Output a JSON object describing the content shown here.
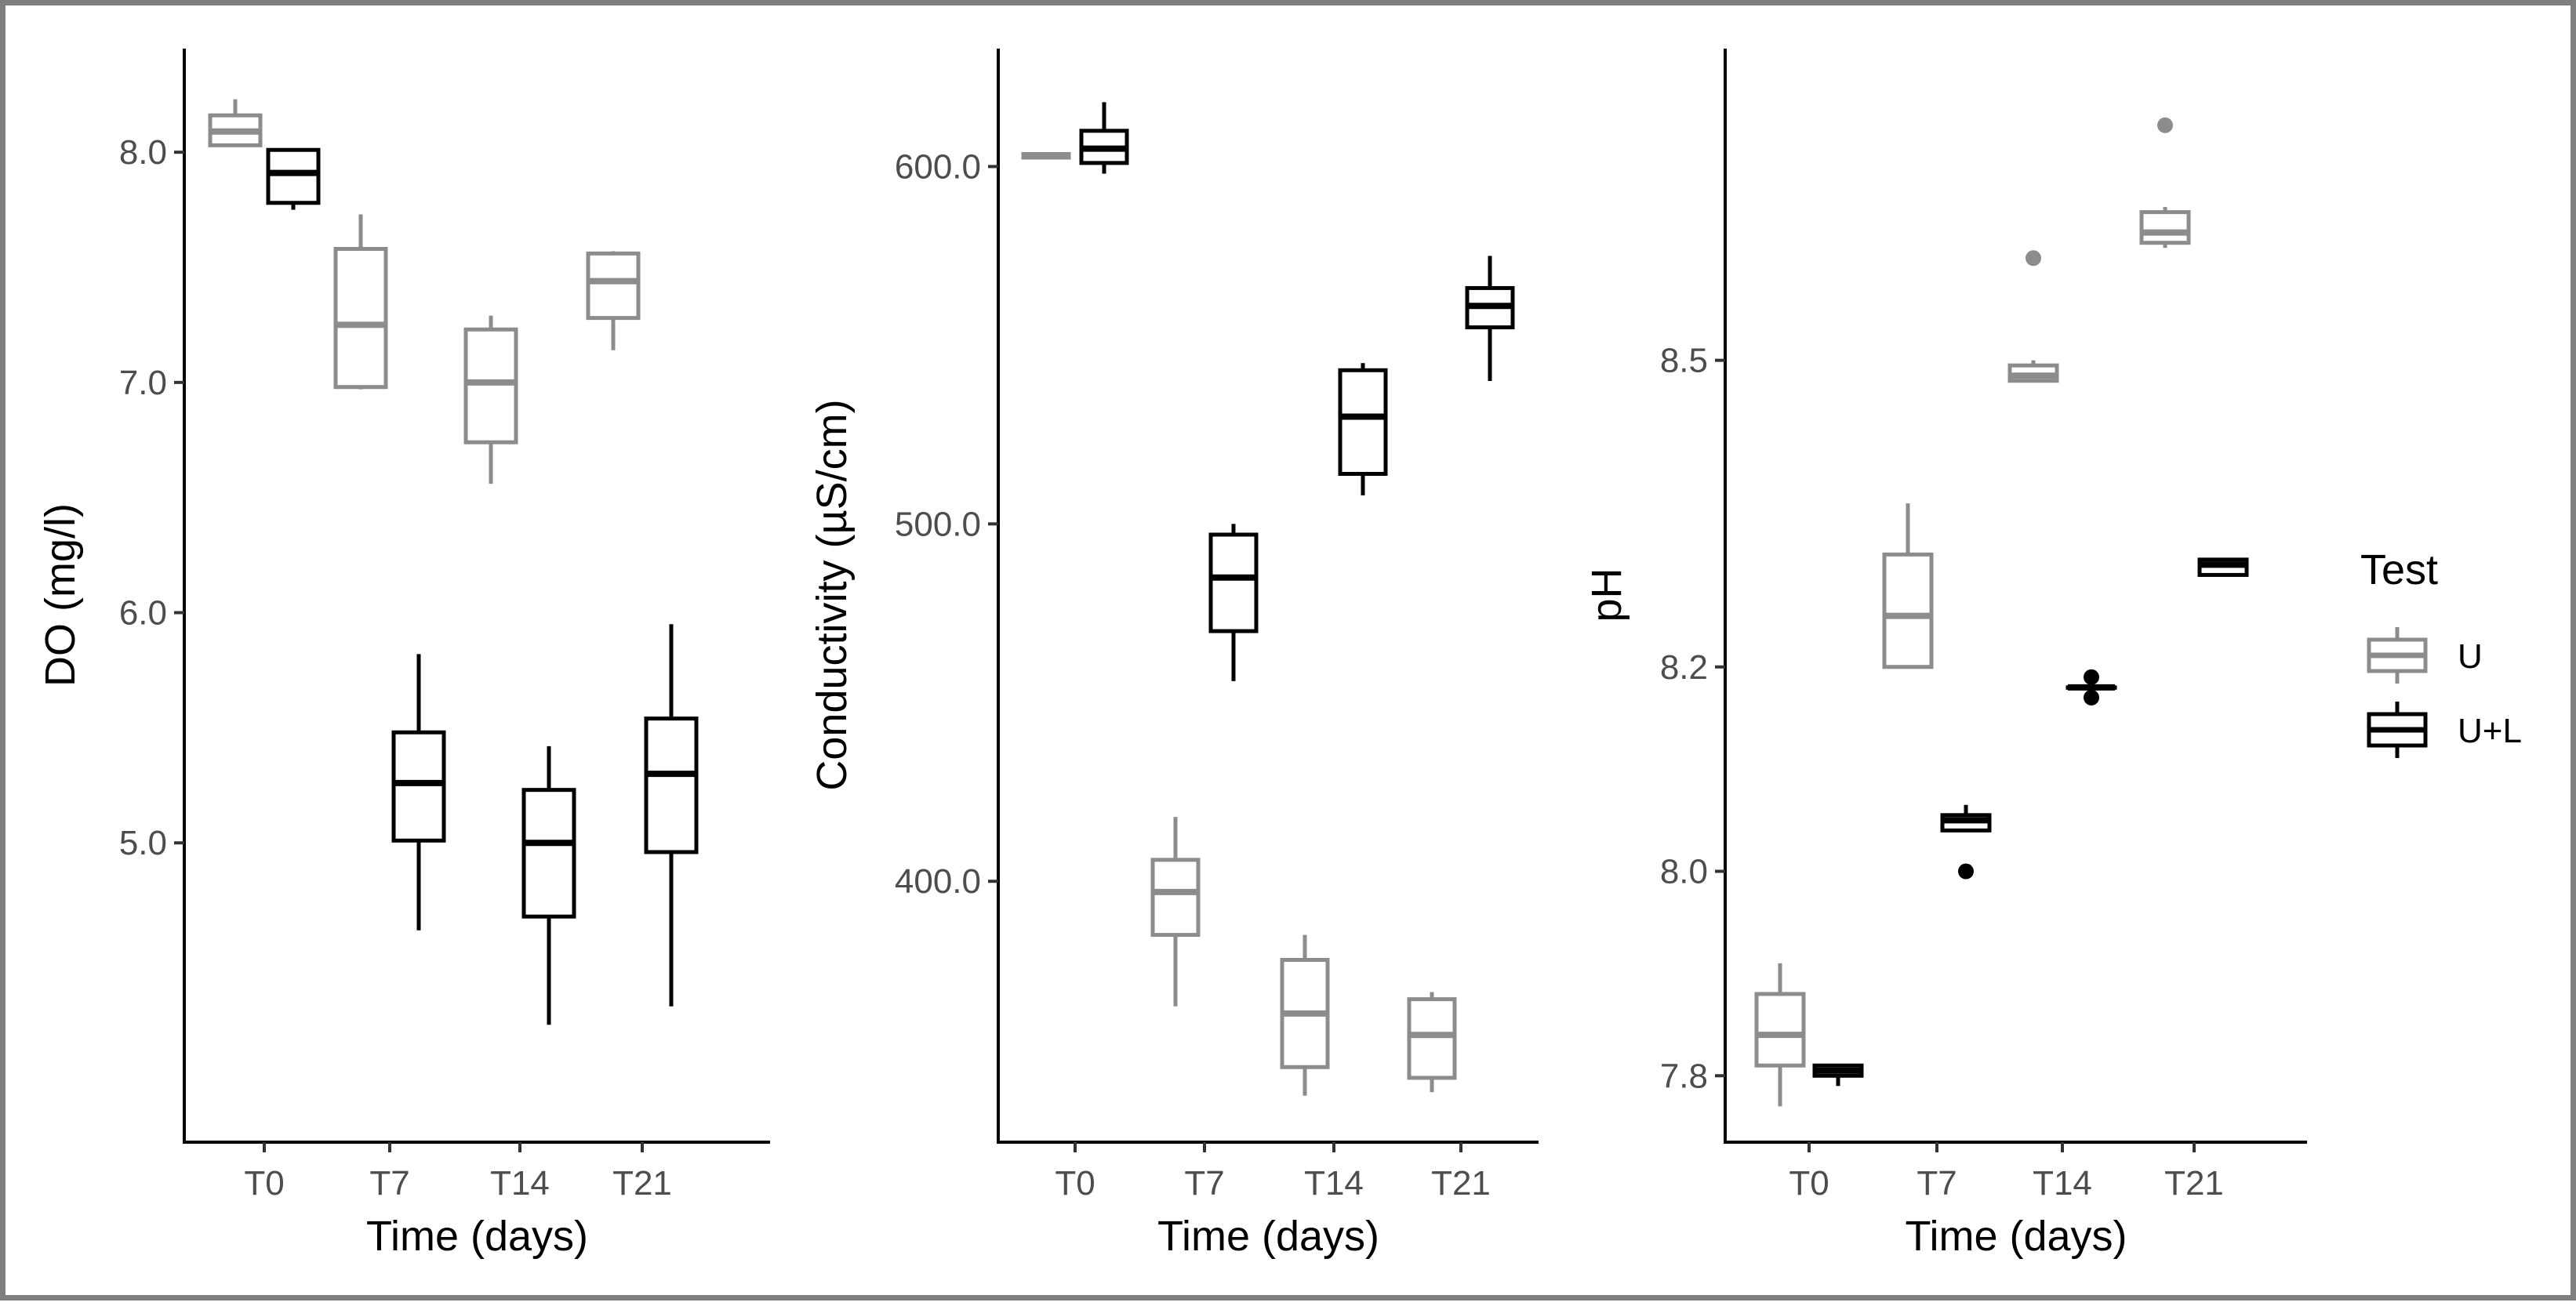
{
  "legend": {
    "title": "Test",
    "items": [
      {
        "label": "U",
        "color": "#8c8c8c"
      },
      {
        "label": "U+L",
        "color": "#000000"
      }
    ]
  },
  "chart_data": [
    {
      "type": "boxplot",
      "id": "do",
      "xlabel": "Time (days)",
      "ylabel": "DO (mg/l)",
      "categories": [
        "T0",
        "T7",
        "T14",
        "T21"
      ],
      "ylim": [
        3.7,
        8.45
      ],
      "yticks": [
        5.0,
        6.0,
        7.0,
        8.0
      ],
      "ytick_labels": [
        "5.0",
        "6.0",
        "7.0",
        "8.0"
      ],
      "series": [
        {
          "name": "U",
          "color": "#8c8c8c",
          "boxes": [
            {
              "min": 8.03,
              "q1": 8.03,
              "median": 8.09,
              "q3": 8.16,
              "max": 8.23,
              "outliers": []
            },
            {
              "min": 6.97,
              "q1": 6.98,
              "median": 7.25,
              "q3": 7.58,
              "max": 7.73,
              "outliers": []
            },
            {
              "min": 6.56,
              "q1": 6.74,
              "median": 7.0,
              "q3": 7.23,
              "max": 7.29,
              "outliers": []
            },
            {
              "min": 7.14,
              "q1": 7.28,
              "median": 7.44,
              "q3": 7.56,
              "max": 7.57,
              "outliers": []
            }
          ]
        },
        {
          "name": "U+L",
          "color": "#000000",
          "boxes": [
            {
              "min": 7.75,
              "q1": 7.78,
              "median": 7.91,
              "q3": 8.01,
              "max": 8.01,
              "outliers": []
            },
            {
              "min": 4.62,
              "q1": 5.01,
              "median": 5.26,
              "q3": 5.48,
              "max": 5.82,
              "outliers": []
            },
            {
              "min": 4.21,
              "q1": 4.68,
              "median": 5.0,
              "q3": 5.23,
              "max": 5.42,
              "outliers": []
            },
            {
              "min": 4.29,
              "q1": 4.96,
              "median": 5.3,
              "q3": 5.54,
              "max": 5.95,
              "outliers": []
            }
          ]
        }
      ]
    },
    {
      "type": "boxplot",
      "id": "conductivity",
      "xlabel": "Time (days)",
      "ylabel": "Conductivity (µS/cm)",
      "categories": [
        "T0",
        "T7",
        "T14",
        "T21"
      ],
      "ylim": [
        327,
        633
      ],
      "yticks": [
        400.0,
        500.0,
        600.0
      ],
      "ytick_labels": [
        "400.0",
        "500.0",
        "600.0"
      ],
      "series": [
        {
          "name": "U",
          "color": "#8c8c8c",
          "boxes": [
            {
              "min": 602,
              "q1": 602.5,
              "median": 603,
              "q3": 603.5,
              "max": 604,
              "outliers": []
            },
            {
              "min": 365,
              "q1": 385,
              "median": 397,
              "q3": 406,
              "max": 418,
              "outliers": []
            },
            {
              "min": 340,
              "q1": 348,
              "median": 363,
              "q3": 378,
              "max": 385,
              "outliers": []
            },
            {
              "min": 341,
              "q1": 345,
              "median": 357,
              "q3": 367,
              "max": 369,
              "outliers": []
            }
          ]
        },
        {
          "name": "U+L",
          "color": "#000000",
          "boxes": [
            {
              "min": 598,
              "q1": 601,
              "median": 605,
              "q3": 610,
              "max": 618,
              "outliers": []
            },
            {
              "min": 456,
              "q1": 470,
              "median": 485,
              "q3": 497,
              "max": 500,
              "outliers": []
            },
            {
              "min": 508,
              "q1": 514,
              "median": 530,
              "q3": 543,
              "max": 545,
              "outliers": []
            },
            {
              "min": 540,
              "q1": 555,
              "median": 561,
              "q3": 566,
              "max": 575,
              "outliers": []
            }
          ]
        }
      ]
    },
    {
      "type": "boxplot",
      "id": "ph",
      "xlabel": "Time (days)",
      "ylabel": "pH",
      "categories": [
        "T0",
        "T7",
        "T14",
        "T21"
      ],
      "ylim": [
        7.735,
        8.805
      ],
      "yticks": [
        7.8,
        8.0,
        8.2,
        8.5
      ],
      "ytick_labels": [
        "7.8",
        "8.0",
        "8.2",
        "8.5"
      ],
      "series": [
        {
          "name": "U",
          "color": "#8c8c8c",
          "boxes": [
            {
              "min": 7.77,
              "q1": 7.81,
              "median": 7.84,
              "q3": 7.88,
              "max": 7.91,
              "outliers": []
            },
            {
              "min": 8.2,
              "q1": 8.2,
              "median": 8.25,
              "q3": 8.31,
              "max": 8.36,
              "outliers": []
            },
            {
              "min": 8.48,
              "q1": 8.48,
              "median": 8.485,
              "q3": 8.495,
              "max": 8.5,
              "outliers": [
                8.6
              ]
            },
            {
              "min": 8.61,
              "q1": 8.615,
              "median": 8.625,
              "q3": 8.645,
              "max": 8.65,
              "outliers": [
                8.73
              ]
            }
          ]
        },
        {
          "name": "U+L",
          "color": "#000000",
          "boxes": [
            {
              "min": 7.79,
              "q1": 7.8,
              "median": 7.805,
              "q3": 7.81,
              "max": 7.81,
              "outliers": []
            },
            {
              "min": 8.04,
              "q1": 8.04,
              "median": 8.05,
              "q3": 8.055,
              "max": 8.065,
              "outliers": [
                8.0
              ]
            },
            {
              "min": 8.18,
              "q1": 8.18,
              "median": 8.18,
              "q3": 8.18,
              "max": 8.19,
              "outliers": [
                8.17,
                8.19
              ]
            },
            {
              "min": 8.29,
              "q1": 8.29,
              "median": 8.3,
              "q3": 8.305,
              "max": 8.305,
              "outliers": []
            }
          ]
        }
      ]
    }
  ]
}
